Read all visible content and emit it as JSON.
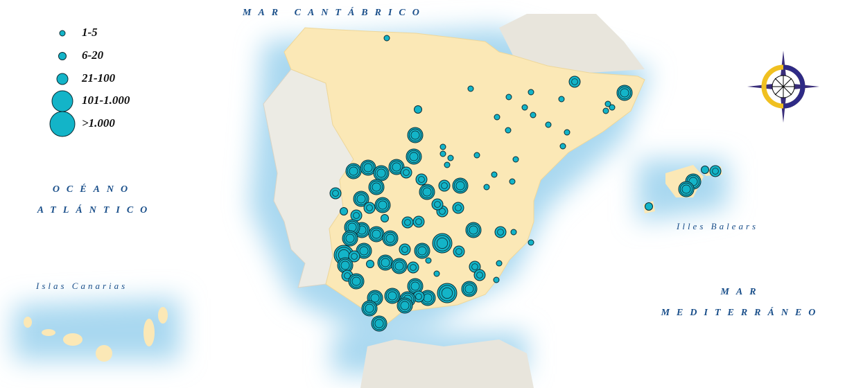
{
  "seas": {
    "north": "MAR CANTÁBRICO",
    "atlantic": [
      "OCÉANO",
      "ATLÁNTICO"
    ],
    "mediterranean": [
      "MAR",
      "MEDITERRÁNEO"
    ]
  },
  "islands": {
    "canarias": "Islas Canarias",
    "balears": "Illes Balears"
  },
  "legend": [
    "1-5",
    "6-20",
    "21-100",
    "101-1.000",
    ">1.000"
  ]
}
